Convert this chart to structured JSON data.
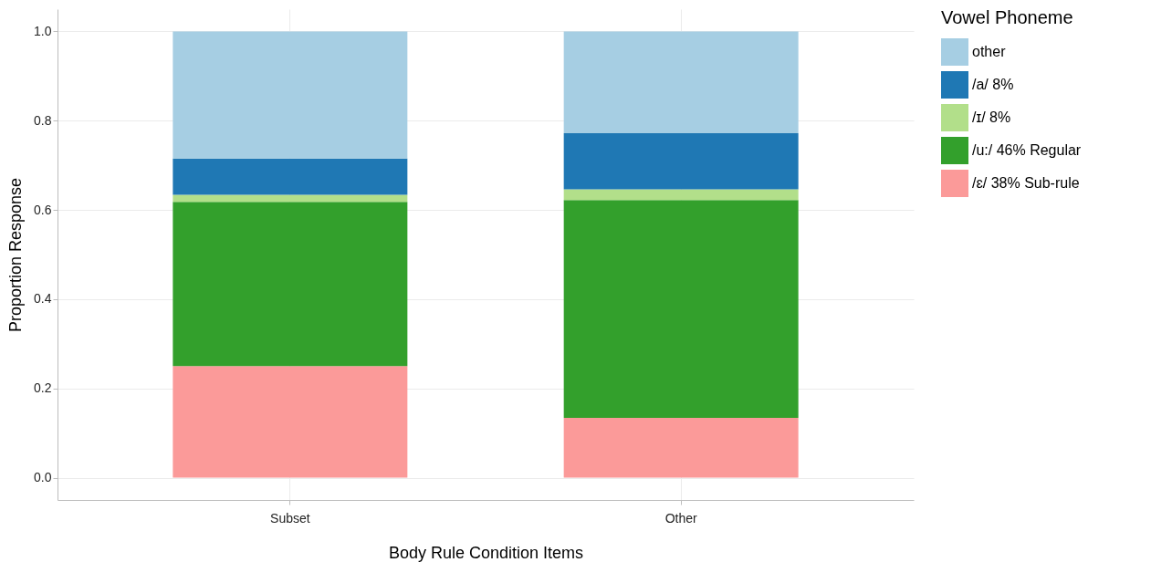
{
  "chart_data": {
    "type": "bar",
    "stacked": true,
    "xlabel": "Body Rule Condition Items",
    "ylabel": "Proportion Response",
    "legend_title": "Vowel Phoneme",
    "legend": "right",
    "grid": true,
    "categories": [
      "Subset",
      "Other"
    ],
    "ylim": [
      -0.05,
      1.05
    ],
    "yticks": [
      {
        "value": 0,
        "label": "0.0"
      },
      0.2,
      0.4,
      0.6,
      0.8,
      {
        "value": 1,
        "label": "1.0"
      }
    ],
    "series": [
      {
        "name": "/ɛ/ 38% Sub-rule",
        "color": "#fb9a99",
        "values": [
          0.25,
          0.134
        ]
      },
      {
        "name": "/u:/ 46% Regular",
        "color": "#33a02c",
        "values": [
          0.368,
          0.488
        ]
      },
      {
        "name": "/ɪ/ 8%",
        "color": "#b2df8a",
        "values": [
          0.016,
          0.024
        ]
      },
      {
        "name": "/a/ 8%",
        "color": "#1f78b4",
        "values": [
          0.081,
          0.126
        ]
      },
      {
        "name": "other",
        "color": "#a6cee3",
        "values": [
          0.285,
          0.228
        ]
      }
    ]
  }
}
